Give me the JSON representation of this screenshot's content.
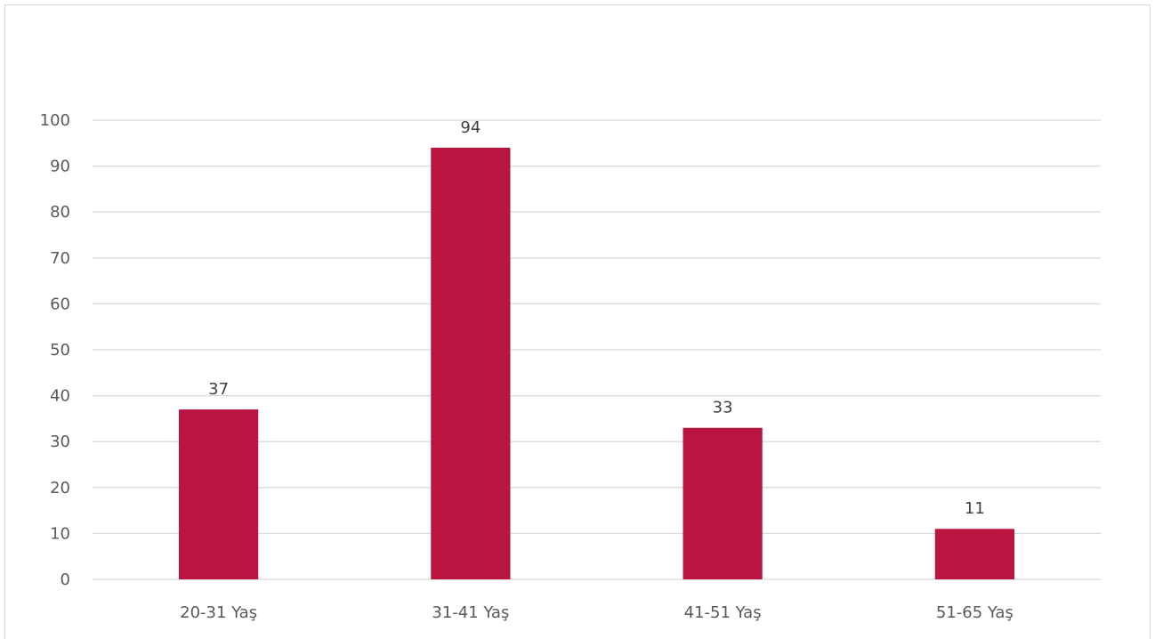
{
  "chart_data": {
    "type": "bar",
    "categories": [
      "20-31 Yaş",
      "31-41 Yaş",
      "41-51 Yaş",
      "51-65 Yaş"
    ],
    "values": [
      37,
      94,
      33,
      11
    ],
    "data_labels": [
      "37",
      "94",
      "33",
      "11"
    ],
    "title": "",
    "xlabel": "",
    "ylabel": "",
    "ylim": [
      0,
      100
    ],
    "yticks": [
      0,
      10,
      20,
      30,
      40,
      50,
      60,
      70,
      80,
      90,
      100
    ],
    "grid": true,
    "legend": "none",
    "bar_color": "#BA1440",
    "gridline_color": "#D9D9D9"
  }
}
